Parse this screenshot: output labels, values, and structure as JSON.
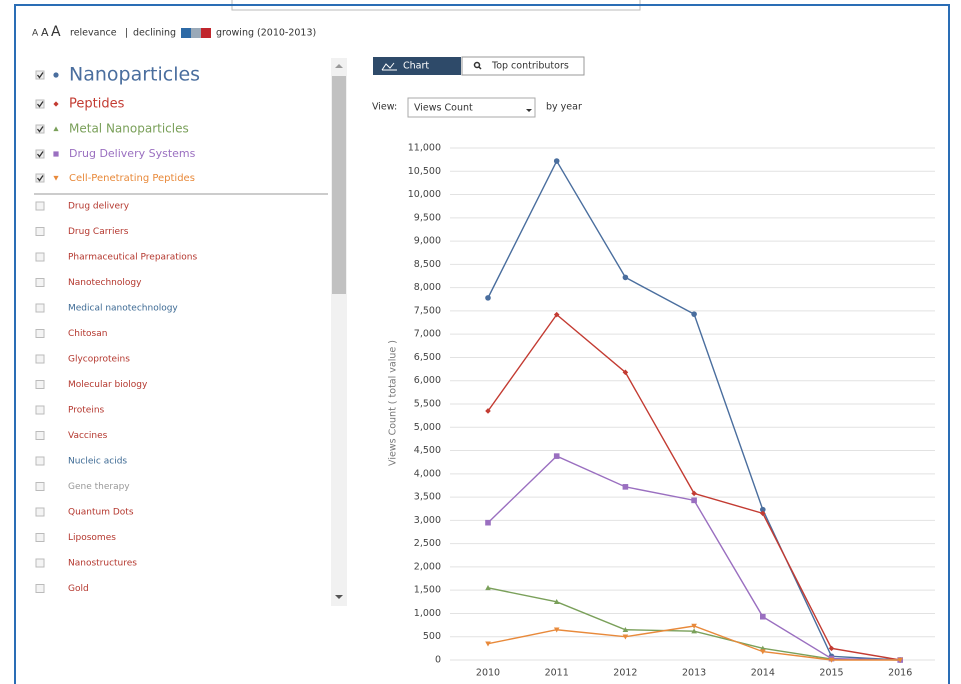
{
  "header": {
    "sizes": [
      "A",
      "A",
      "A"
    ],
    "relevance": "relevance",
    "separator": "|",
    "declining": "declining",
    "growing": "growing (2010-2013)"
  },
  "topics": {
    "unselected": [
      "Drug delivery",
      "Drug Carriers",
      "Pharmaceutical Preparations",
      "Nanotechnology",
      "Medical nanotechnology",
      "Chitosan",
      "Glycoproteins",
      "Molecular biology",
      "Proteins",
      "Vaccines",
      "Nucleic acids",
      "Gene therapy",
      "Quantum Dots",
      "Liposomes",
      "Nanostructures",
      "Gold"
    ]
  },
  "tabs": [
    "Chart",
    "Top contributors"
  ],
  "view": {
    "label": "View:",
    "value": "Views Count",
    "suffix": "by year"
  },
  "chart_data": {
    "type": "line",
    "y_label": "Views Count ( total value )",
    "categories": [
      "2010",
      "2011",
      "2012",
      "2013",
      "2014",
      "2015",
      "2016"
    ],
    "series": [
      {
        "name": "Nanoparticles",
        "color": "#4a6e9e",
        "values": [
          7780,
          10720,
          8220,
          7430,
          3230,
          80,
          0
        ]
      },
      {
        "name": "Peptides",
        "color": "#c33b32",
        "values": [
          5350,
          7420,
          6180,
          3580,
          3150,
          250,
          0
        ]
      },
      {
        "name": "Metal Nanoparticles",
        "color": "#7aa05a",
        "values": [
          1550,
          1250,
          650,
          620,
          250,
          20,
          0
        ]
      },
      {
        "name": "Drug Delivery Systems",
        "color": "#9a6fc0",
        "values": [
          2950,
          4380,
          3720,
          3430,
          930,
          30,
          0
        ]
      },
      {
        "name": "Cell-Penetrating Peptides",
        "color": "#e8893a",
        "values": [
          350,
          650,
          500,
          730,
          180,
          0,
          0
        ]
      }
    ],
    "ylim": [
      0,
      11000
    ],
    "yticks": [
      0,
      500,
      {
        "value": 1000,
        "label": "1,000"
      },
      {
        "value": 1500,
        "label": "1,500"
      },
      {
        "value": 2000,
        "label": "2,000"
      },
      {
        "value": 2500,
        "label": "2,500"
      },
      {
        "value": 3000,
        "label": "3,000"
      },
      {
        "value": 3500,
        "label": "3,500"
      },
      {
        "value": 4000,
        "label": "4,000"
      },
      {
        "value": 4500,
        "label": "4,500"
      },
      {
        "value": 5000,
        "label": "5,000"
      },
      {
        "value": 5500,
        "label": "5,500"
      },
      {
        "value": 6000,
        "label": "6,000"
      },
      {
        "value": 6500,
        "label": "6,500"
      },
      {
        "value": 7000,
        "label": "7,000"
      },
      {
        "value": 7500,
        "label": "7,500"
      },
      {
        "value": 8000,
        "label": "8,000"
      },
      {
        "value": 8500,
        "label": "8,500"
      },
      {
        "value": 9000,
        "label": "9,000"
      },
      {
        "value": 9500,
        "label": "9,500"
      },
      {
        "value": 10000,
        "label": "10,000"
      },
      {
        "value": 10500,
        "label": "10,500"
      },
      {
        "value": 11000,
        "label": "11,000"
      }
    ],
    "grid": true
  }
}
